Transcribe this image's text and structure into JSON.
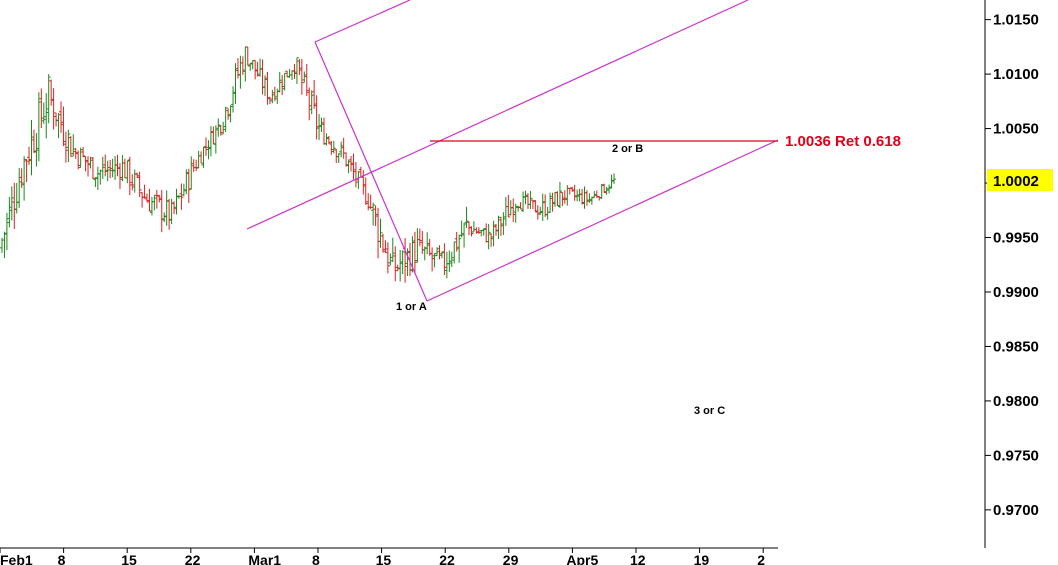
{
  "chart_data": {
    "type": "ohlc",
    "title": "",
    "xlabel": "",
    "ylabel": "",
    "ylim": [
      0.9665,
      1.0168
    ],
    "y_ticks": [
      "1.0150",
      "1.0100",
      "1.0050",
      "1.0000",
      "0.9950",
      "0.9900",
      "0.9850",
      "0.9800",
      "0.9750",
      "0.9700"
    ],
    "x_ticks": [
      "Feb1",
      "8",
      "15",
      "22",
      "Mar1",
      "8",
      "15",
      "22",
      "29",
      "Apr5",
      "12",
      "19",
      "2"
    ],
    "current_price": "1.0002",
    "colors": {
      "up": "#1a8a1a",
      "down": "#dd1f1f",
      "channel": "#cc33cc",
      "retrace": "#e0001a",
      "price_tag": "#ffff00"
    },
    "annotations": {
      "retracement": "1.0036 Ret 0.618",
      "wave_1": "1 or A",
      "wave_2": "2 or B",
      "wave_3": "3 or C"
    },
    "retracement_level": 1.0036,
    "segments": [
      {
        "from": 0.994,
        "to": 1.002,
        "low": 0.9925,
        "high": 1.003
      },
      {
        "from": 1.002,
        "to": 1.008,
        "low": 0.9985,
        "high": 1.01
      },
      {
        "from": 1.008,
        "to": 1.003,
        "low": 1.0005,
        "high": 1.0095
      },
      {
        "from": 1.003,
        "to": 1.001,
        "low": 0.9975,
        "high": 1.004
      },
      {
        "from": 1.001,
        "to": 1.0015,
        "low": 0.997,
        "high": 1.003
      },
      {
        "from": 1.0015,
        "to": 0.9985,
        "low": 0.996,
        "high": 1.003
      },
      {
        "from": 0.9985,
        "to": 0.997,
        "low": 0.993,
        "high": 1.0
      },
      {
        "from": 0.997,
        "to": 1.002,
        "low": 0.996,
        "high": 1.003
      },
      {
        "from": 1.002,
        "to": 1.0055,
        "low": 1.001,
        "high": 1.006
      },
      {
        "from": 1.0055,
        "to": 1.012,
        "low": 1.0045,
        "high": 1.0125
      },
      {
        "from": 1.012,
        "to": 1.008,
        "low": 1.007,
        "high": 1.0125
      },
      {
        "from": 1.008,
        "to": 1.011,
        "low": 1.007,
        "high": 1.012
      },
      {
        "from": 1.011,
        "to": 1.005,
        "low": 1.0035,
        "high": 1.0115
      },
      {
        "from": 1.005,
        "to": 1.0025,
        "low": 1.0005,
        "high": 1.006
      },
      {
        "from": 1.0025,
        "to": 0.9985,
        "low": 0.9975,
        "high": 1.003
      },
      {
        "from": 0.9985,
        "to": 0.992,
        "low": 0.9895,
        "high": 0.999
      },
      {
        "from": 0.992,
        "to": 0.994,
        "low": 0.99,
        "high": 0.9985
      },
      {
        "from": 0.994,
        "to": 0.9925,
        "low": 0.9905,
        "high": 0.9975
      },
      {
        "from": 0.9925,
        "to": 0.996,
        "low": 0.9905,
        "high": 0.9985
      },
      {
        "from": 0.996,
        "to": 0.995,
        "low": 0.993,
        "high": 0.9975
      },
      {
        "from": 0.995,
        "to": 0.9985,
        "low": 0.994,
        "high": 1.0
      },
      {
        "from": 0.9985,
        "to": 0.9975,
        "low": 0.9955,
        "high": 0.9995
      },
      {
        "from": 0.9975,
        "to": 0.999,
        "low": 0.996,
        "high": 1.001
      },
      {
        "from": 0.999,
        "to": 0.9985,
        "low": 0.9975,
        "high": 1.001
      },
      {
        "from": 0.9985,
        "to": 1.0002,
        "low": 0.998,
        "high": 1.001
      }
    ]
  }
}
